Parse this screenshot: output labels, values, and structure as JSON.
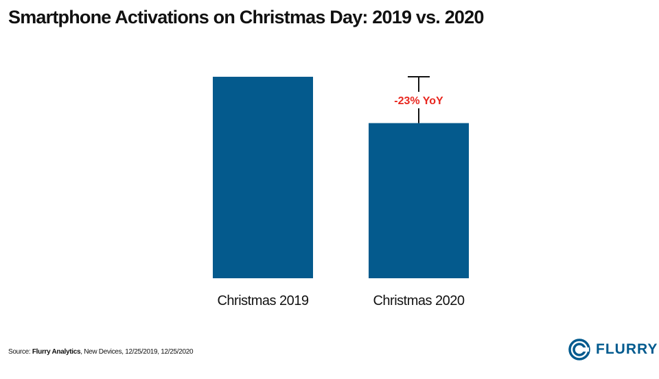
{
  "title": "Smartphone Activations on Christmas Day: 2019 vs. 2020",
  "chart_data": {
    "type": "bar",
    "categories": [
      "Christmas 2019",
      "Christmas 2020"
    ],
    "values": [
      100,
      77
    ],
    "ylim": [
      0,
      100
    ],
    "bar_color": "#045a8d",
    "annotation": {
      "text": "-23% YoY",
      "color": "#e8271f",
      "category_index": 1
    },
    "grid": false,
    "legend": "none",
    "xlabel": "",
    "ylabel": ""
  },
  "source": {
    "prefix": "Source: ",
    "org": "Flurry Analytics",
    "rest": ", New Devices, 12/25/2019, 12/25/2020"
  },
  "logo": {
    "text": "FLURRY",
    "icon": "flurry-logo-icon",
    "color": "#005a8e"
  }
}
